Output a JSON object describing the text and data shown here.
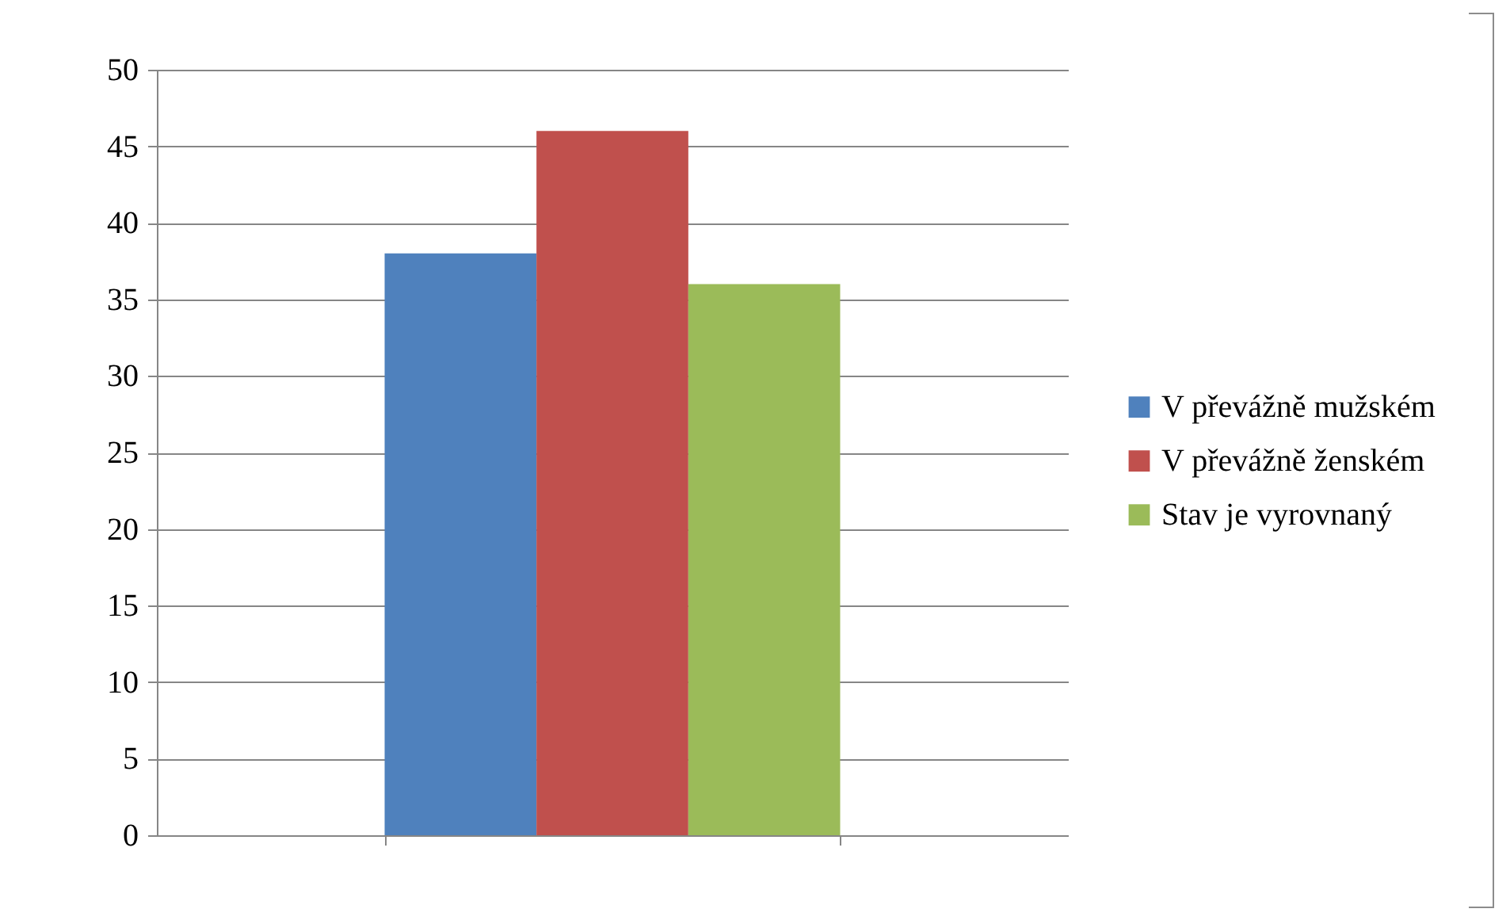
{
  "chart_data": {
    "type": "bar",
    "categories": [
      null
    ],
    "series": [
      {
        "name": "V převážně mužském",
        "color": "#4f81bd",
        "values": [
          38
        ]
      },
      {
        "name": "V převážně ženském",
        "color": "#c0504d",
        "values": [
          46
        ]
      },
      {
        "name": "Stav je vyrovnaný",
        "color": "#9bbb59",
        "values": [
          36
        ]
      }
    ],
    "ylim": [
      0,
      50
    ],
    "yticks": [
      0,
      5,
      10,
      15,
      20,
      25,
      30,
      35,
      40,
      45,
      50
    ],
    "grid": "y",
    "legend": "right"
  }
}
